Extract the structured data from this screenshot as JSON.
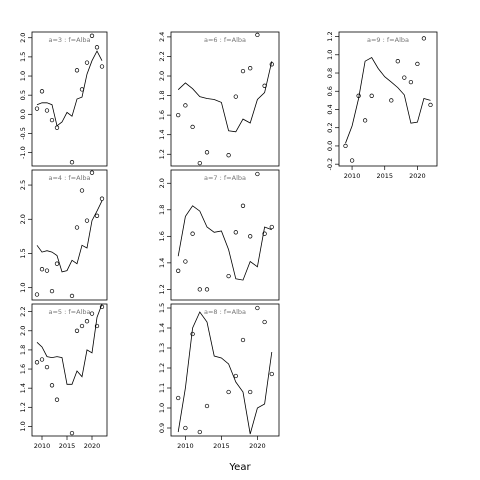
{
  "chart_data": {
    "type": "scatter",
    "xlabel": "Year",
    "panels": [
      {
        "title": "a=3 : f=Alba",
        "xlim": [
          2008,
          2023
        ],
        "ylim": [
          -1.35,
          2.15
        ],
        "yticks": [
          -1.0,
          -0.5,
          0.0,
          0.5,
          1.0,
          1.5,
          2.0
        ],
        "ytick_labels": [
          "-1.0",
          "-0.5",
          "0.0",
          "0.5",
          "1.0",
          "1.5",
          "2.0"
        ],
        "xticks": [],
        "points": {
          "x": [
            2009,
            2010,
            2011,
            2012,
            2013,
            2016,
            2017,
            2018,
            2019,
            2020,
            2021,
            2022
          ],
          "y": [
            0.15,
            0.6,
            0.1,
            -0.15,
            -0.35,
            -1.25,
            1.15,
            0.65,
            1.35,
            2.05,
            1.75,
            1.25
          ]
        },
        "fit": {
          "x": [
            2009,
            2010,
            2011,
            2012,
            2013,
            2014,
            2015,
            2016,
            2017,
            2018,
            2019,
            2020,
            2021,
            2022
          ],
          "y": [
            0.25,
            0.3,
            0.3,
            0.25,
            -0.3,
            -0.2,
            0.05,
            -0.05,
            0.4,
            0.45,
            1.05,
            1.4,
            1.65,
            1.4
          ]
        }
      },
      {
        "title": "a=6 : f=Alba",
        "xlim": [
          2008,
          2023
        ],
        "ylim": [
          1.08,
          2.45
        ],
        "yticks": [
          1.2,
          1.4,
          1.6,
          1.8,
          2.0,
          2.2,
          2.4
        ],
        "ytick_labels": [
          "1.2",
          "1.4",
          "1.6",
          "1.8",
          "2.0",
          "2.2",
          "2.4"
        ],
        "xticks": [],
        "points": {
          "x": [
            2009,
            2010,
            2011,
            2012,
            2013,
            2016,
            2017,
            2018,
            2019,
            2020,
            2021,
            2022
          ],
          "y": [
            1.6,
            1.7,
            1.48,
            1.11,
            1.22,
            1.19,
            1.79,
            2.05,
            2.08,
            2.42,
            1.9,
            2.12
          ]
        },
        "fit": {
          "x": [
            2009,
            2010,
            2011,
            2012,
            2013,
            2014,
            2015,
            2016,
            2017,
            2018,
            2019,
            2020,
            2021,
            2022
          ],
          "y": [
            1.86,
            1.93,
            1.87,
            1.79,
            1.77,
            1.76,
            1.73,
            1.44,
            1.43,
            1.56,
            1.52,
            1.76,
            1.83,
            2.15
          ]
        }
      },
      {
        "title": "a=9 : f=Alba",
        "xlim": [
          2008,
          2023
        ],
        "ylim": [
          -0.22,
          1.25
        ],
        "yticks": [
          -0.2,
          0.0,
          0.2,
          0.4,
          0.6,
          0.8,
          1.0,
          1.2
        ],
        "ytick_labels": [
          "-0.2",
          "0.0",
          "0.2",
          "0.4",
          "0.6",
          "0.8",
          "1.0",
          "1.2"
        ],
        "xticks": [
          2010,
          2015,
          2020
        ],
        "xtick_labels": [
          "2010",
          "2015",
          "2020"
        ],
        "points": {
          "x": [
            2009,
            2010,
            2011,
            2012,
            2013,
            2016,
            2017,
            2018,
            2019,
            2020,
            2021,
            2022
          ],
          "y": [
            0.0,
            -0.16,
            0.55,
            0.28,
            0.55,
            0.5,
            0.93,
            0.75,
            0.7,
            0.9,
            1.18,
            0.45
          ]
        },
        "fit": {
          "x": [
            2009,
            2010,
            2011,
            2012,
            2013,
            2014,
            2015,
            2016,
            2017,
            2018,
            2019,
            2020,
            2021,
            2022
          ],
          "y": [
            0.03,
            0.22,
            0.52,
            0.93,
            0.97,
            0.85,
            0.76,
            0.7,
            0.64,
            0.56,
            0.25,
            0.26,
            0.52,
            0.5
          ]
        }
      },
      {
        "title": "a=4 : f=Alba",
        "xlim": [
          2008,
          2023
        ],
        "ylim": [
          0.82,
          2.72
        ],
        "yticks": [
          1.0,
          1.5,
          2.0,
          2.5
        ],
        "ytick_labels": [
          "1.0",
          "1.5",
          "2.0",
          "2.5"
        ],
        "xticks": [],
        "points": {
          "x": [
            2009,
            2010,
            2011,
            2012,
            2013,
            2016,
            2017,
            2018,
            2019,
            2020,
            2021,
            2022
          ],
          "y": [
            0.9,
            1.27,
            1.25,
            0.95,
            1.35,
            0.88,
            1.88,
            2.42,
            1.98,
            2.68,
            2.05,
            2.3
          ]
        },
        "fit": {
          "x": [
            2009,
            2010,
            2011,
            2012,
            2013,
            2014,
            2015,
            2016,
            2017,
            2018,
            2019,
            2020,
            2021,
            2022
          ],
          "y": [
            1.62,
            1.52,
            1.54,
            1.52,
            1.47,
            1.23,
            1.25,
            1.4,
            1.35,
            1.62,
            1.58,
            1.98,
            2.12,
            2.27
          ]
        }
      },
      {
        "title": "a=7 : f=Alba",
        "xlim": [
          2008,
          2023
        ],
        "ylim": [
          1.12,
          2.1
        ],
        "yticks": [
          1.2,
          1.4,
          1.6,
          1.8,
          2.0
        ],
        "ytick_labels": [
          "1.2",
          "1.4",
          "1.6",
          "1.8",
          "2.0"
        ],
        "xticks": [],
        "points": {
          "x": [
            2009,
            2010,
            2011,
            2012,
            2013,
            2016,
            2017,
            2018,
            2019,
            2020,
            2021,
            2022
          ],
          "y": [
            1.34,
            1.41,
            1.62,
            1.2,
            1.2,
            1.3,
            1.63,
            1.83,
            1.6,
            2.07,
            1.62,
            1.67
          ]
        },
        "fit": {
          "x": [
            2009,
            2010,
            2011,
            2012,
            2013,
            2014,
            2015,
            2016,
            2017,
            2018,
            2019,
            2020,
            2021,
            2022
          ],
          "y": [
            1.45,
            1.75,
            1.83,
            1.79,
            1.67,
            1.63,
            1.64,
            1.5,
            1.28,
            1.27,
            1.41,
            1.37,
            1.67,
            1.65
          ]
        }
      },
      {
        "title": "a=5 : f=Alba",
        "xlim": [
          2008,
          2023
        ],
        "ylim": [
          0.9,
          2.28
        ],
        "yticks": [
          1.0,
          1.2,
          1.4,
          1.6,
          1.8,
          2.0,
          2.2
        ],
        "ytick_labels": [
          "1.0",
          "1.2",
          "1.4",
          "1.6",
          "1.8",
          "2.0",
          "2.2"
        ],
        "xticks": [
          2010,
          2015,
          2020
        ],
        "xtick_labels": [
          "2010",
          "2015",
          "2020"
        ],
        "points": {
          "x": [
            2009,
            2010,
            2011,
            2012,
            2013,
            2016,
            2017,
            2018,
            2019,
            2020,
            2021,
            2022
          ],
          "y": [
            1.67,
            1.7,
            1.62,
            1.43,
            1.28,
            0.93,
            2.0,
            2.05,
            2.1,
            2.18,
            2.05,
            2.25
          ]
        },
        "fit": {
          "x": [
            2009,
            2010,
            2011,
            2012,
            2013,
            2014,
            2015,
            2016,
            2017,
            2018,
            2019,
            2020,
            2021,
            2022
          ],
          "y": [
            1.88,
            1.83,
            1.73,
            1.72,
            1.73,
            1.72,
            1.44,
            1.44,
            1.58,
            1.52,
            1.8,
            1.77,
            2.14,
            2.28
          ]
        }
      },
      {
        "title": "a=8 : f=Alba",
        "xlim": [
          2008,
          2023
        ],
        "ylim": [
          0.86,
          1.52
        ],
        "yticks": [
          0.9,
          1.0,
          1.1,
          1.2,
          1.3,
          1.4,
          1.5
        ],
        "ytick_labels": [
          "0.9",
          "1.0",
          "1.1",
          "1.2",
          "1.3",
          "1.4",
          "1.5"
        ],
        "xticks": [
          2010,
          2015,
          2020
        ],
        "xtick_labels": [
          "2010",
          "2015",
          "2020"
        ],
        "points": {
          "x": [
            2009,
            2010,
            2011,
            2012,
            2013,
            2016,
            2017,
            2018,
            2019,
            2020,
            2021,
            2022
          ],
          "y": [
            1.05,
            0.9,
            1.37,
            0.88,
            1.01,
            1.08,
            1.16,
            1.34,
            1.08,
            1.5,
            1.43,
            1.17
          ]
        },
        "fit": {
          "x": [
            2009,
            2010,
            2011,
            2012,
            2013,
            2014,
            2015,
            2016,
            2017,
            2018,
            2019,
            2020,
            2021,
            2022
          ],
          "y": [
            0.88,
            1.1,
            1.4,
            1.48,
            1.43,
            1.26,
            1.25,
            1.22,
            1.13,
            1.08,
            0.87,
            1.0,
            1.02,
            1.28
          ]
        }
      }
    ]
  }
}
